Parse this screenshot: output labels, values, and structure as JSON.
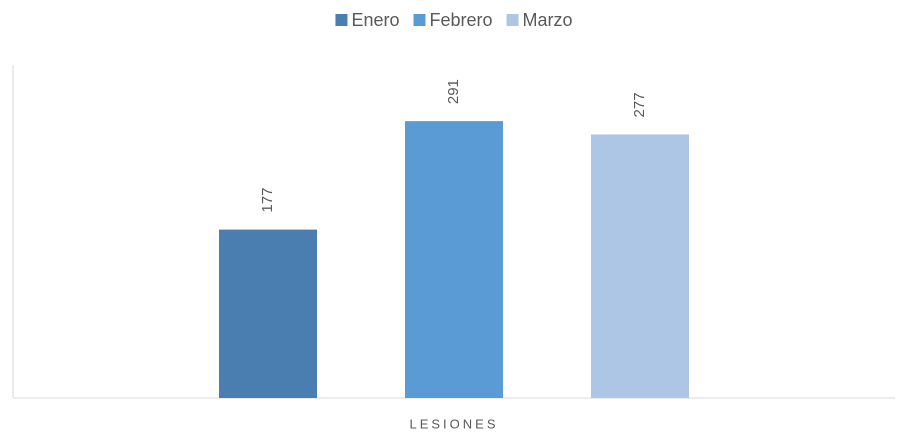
{
  "chart_data": {
    "type": "bar",
    "categories": [
      "LESIONES"
    ],
    "series": [
      {
        "name": "Enero",
        "color": "#4a7eb0",
        "values": [
          177
        ]
      },
      {
        "name": "Febrero",
        "color": "#5b9bd5",
        "values": [
          291
        ]
      },
      {
        "name": "Marzo",
        "color": "#adc6e5",
        "values": [
          277
        ]
      }
    ],
    "ylim": [
      0,
      350
    ],
    "legend": "top",
    "data_labels": true
  }
}
